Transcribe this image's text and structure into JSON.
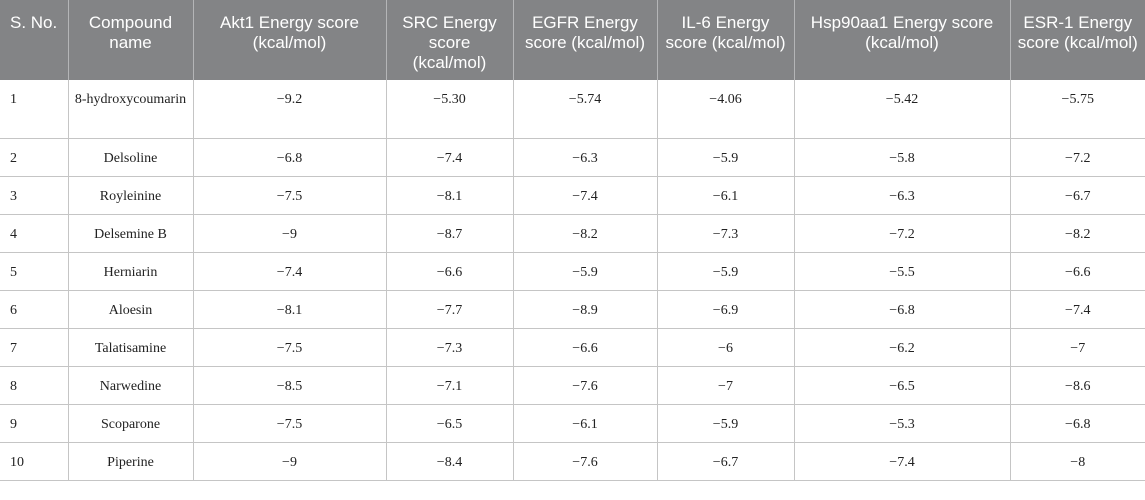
{
  "table": {
    "headers": [
      "S. No.",
      "Compound name",
      "Akt1 Energy score (kcal/mol)",
      "SRC Energy score (kcal/mol)",
      "EGFR Energy score (kcal/mol)",
      "IL-6 Energy score (kcal/mol)",
      "Hsp90aa1 Energy score (kcal/mol)",
      "ESR-1 Energy score (kcal/mol)"
    ],
    "rows": [
      [
        "1",
        "8-hydroxycoumarin",
        "−9.2",
        "−5.30",
        "−5.74",
        "−4.06",
        "−5.42",
        "−5.75"
      ],
      [
        "2",
        "Delsoline",
        "−6.8",
        "−7.4",
        "−6.3",
        "−5.9",
        "−5.8",
        "−7.2"
      ],
      [
        "3",
        "Royleinine",
        "−7.5",
        "−8.1",
        "−7.4",
        "−6.1",
        "−6.3",
        "−6.7"
      ],
      [
        "4",
        "Delsemine B",
        "−9",
        "−8.7",
        "−8.2",
        "−7.3",
        "−7.2",
        "−8.2"
      ],
      [
        "5",
        "Herniarin",
        "−7.4",
        "−6.6",
        "−5.9",
        "−5.9",
        "−5.5",
        "−6.6"
      ],
      [
        "6",
        "Aloesin",
        "−8.1",
        "−7.7",
        "−8.9",
        "−6.9",
        "−6.8",
        "−7.4"
      ],
      [
        "7",
        "Talatisamine",
        "−7.5",
        "−7.3",
        "−6.6",
        "−6",
        "−6.2",
        "−7"
      ],
      [
        "8",
        "Narwedine",
        "−8.5",
        "−7.1",
        "−7.6",
        "−7",
        "−6.5",
        "−8.6"
      ],
      [
        "9",
        "Scoparone",
        "−7.5",
        "−6.5",
        "−6.1",
        "−5.9",
        "−5.3",
        "−6.8"
      ],
      [
        "10",
        "Piperine",
        "−9",
        "−8.4",
        "−7.6",
        "−6.7",
        "−7.4",
        "−8"
      ]
    ]
  }
}
